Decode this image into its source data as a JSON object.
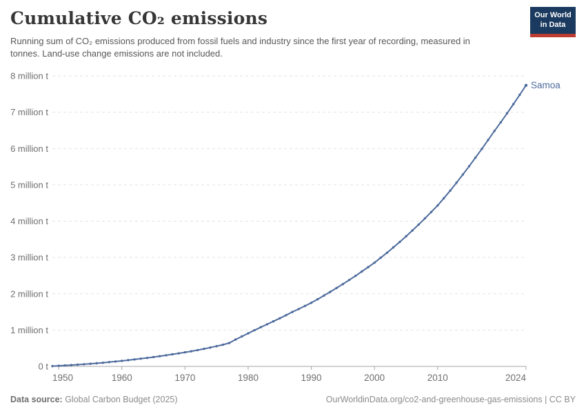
{
  "header": {
    "title": "Cumulative CO₂ emissions",
    "subtitle": "Running sum of CO₂ emissions produced from fossil fuels and industry since the first year of recording, measured in tonnes. Land-use change emissions are not included.",
    "logo": {
      "line1": "Our World",
      "line2": "in Data"
    }
  },
  "footer": {
    "source_label": "Data source:",
    "source_value": " Global Carbon Budget (2025)",
    "citation": "OurWorldinData.org/co2-and-greenhouse-gas-emissions | CC BY"
  },
  "colors": {
    "series_blue": "#4c6a9c",
    "grid": "#e2e2e2",
    "axis": "#a5a5a5",
    "tick_label": "#6e6e6e",
    "logo_navy": "#1b3a5f",
    "logo_red": "#bd3d32"
  },
  "chart_data": {
    "type": "line",
    "title": "Cumulative CO₂ emissions",
    "ylabel": "",
    "xlabel": "",
    "y_unit": "million tonnes",
    "xlim": [
      1949,
      2024
    ],
    "ylim": [
      0,
      8
    ],
    "grid": "horizontal-dashed",
    "legend_position": "end-of-line-label",
    "x_ticks": [
      1950,
      1960,
      1970,
      1980,
      1990,
      2000,
      2010,
      2024
    ],
    "y_ticks": [
      {
        "value": 0,
        "label": "0 t"
      },
      {
        "value": 1,
        "label": "1 million t"
      },
      {
        "value": 2,
        "label": "2 million t"
      },
      {
        "value": 3,
        "label": "3 million t"
      },
      {
        "value": 4,
        "label": "4 million t"
      },
      {
        "value": 5,
        "label": "5 million t"
      },
      {
        "value": 6,
        "label": "6 million t"
      },
      {
        "value": 7,
        "label": "7 million t"
      },
      {
        "value": 8,
        "label": "8 million t"
      }
    ],
    "series": [
      {
        "name": "Samoa",
        "color": "#4c6a9c",
        "x": [
          1949,
          1950,
          1951,
          1952,
          1953,
          1954,
          1955,
          1956,
          1957,
          1958,
          1959,
          1960,
          1961,
          1962,
          1963,
          1964,
          1965,
          1966,
          1967,
          1968,
          1969,
          1970,
          1971,
          1972,
          1973,
          1974,
          1975,
          1976,
          1977,
          1978,
          1979,
          1980,
          1981,
          1982,
          1983,
          1984,
          1985,
          1986,
          1987,
          1988,
          1989,
          1990,
          1991,
          1992,
          1993,
          1994,
          1995,
          1996,
          1997,
          1998,
          1999,
          2000,
          2001,
          2002,
          2003,
          2004,
          2005,
          2006,
          2007,
          2008,
          2009,
          2010,
          2011,
          2012,
          2013,
          2014,
          2015,
          2016,
          2017,
          2018,
          2019,
          2020,
          2021,
          2022,
          2023,
          2024
        ],
        "y": [
          0.008,
          0.017,
          0.026,
          0.036,
          0.047,
          0.059,
          0.072,
          0.086,
          0.101,
          0.117,
          0.134,
          0.152,
          0.171,
          0.191,
          0.212,
          0.234,
          0.257,
          0.281,
          0.306,
          0.332,
          0.359,
          0.387,
          0.417,
          0.449,
          0.483,
          0.519,
          0.557,
          0.597,
          0.645,
          0.74,
          0.825,
          0.91,
          0.995,
          1.08,
          1.16,
          1.24,
          1.325,
          1.41,
          1.5,
          1.58,
          1.665,
          1.752,
          1.849,
          1.949,
          2.052,
          2.158,
          2.267,
          2.379,
          2.494,
          2.612,
          2.733,
          2.857,
          2.992,
          3.132,
          3.277,
          3.427,
          3.582,
          3.742,
          3.907,
          4.077,
          4.252,
          4.432,
          4.632,
          4.842,
          5.06,
          5.285,
          5.515,
          5.75,
          5.99,
          6.235,
          6.483,
          6.723,
          6.968,
          7.22,
          7.478,
          7.74
        ]
      }
    ]
  }
}
